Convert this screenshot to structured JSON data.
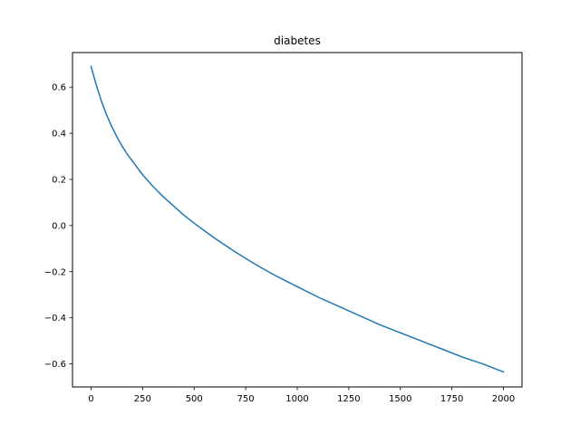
{
  "chart_data": {
    "type": "line",
    "title": "diabetes",
    "xlabel": "",
    "ylabel": "",
    "xlim": [
      -90,
      2090
    ],
    "ylim": [
      -0.7,
      0.75
    ],
    "xticks": [
      0,
      250,
      500,
      750,
      1000,
      1250,
      1500,
      1750,
      2000
    ],
    "xtick_labels": [
      "0",
      "250",
      "500",
      "750",
      "1000",
      "1250",
      "1500",
      "1750",
      "2000"
    ],
    "yticks": [
      -0.6,
      -0.4,
      -0.2,
      0.0,
      0.2,
      0.4,
      0.6
    ],
    "ytick_labels": [
      "−0.6",
      "−0.4",
      "−0.2",
      "0.0",
      "0.2",
      "0.4",
      "0.6"
    ],
    "grid": false,
    "series": [
      {
        "color": "#1f77b4",
        "x": [
          0,
          25,
          50,
          75,
          100,
          125,
          150,
          175,
          200,
          250,
          300,
          350,
          400,
          450,
          500,
          600,
          700,
          800,
          900,
          1000,
          1100,
          1200,
          1300,
          1400,
          1500,
          1600,
          1700,
          1800,
          1900,
          2000
        ],
        "y": [
          0.69,
          0.61,
          0.54,
          0.48,
          0.43,
          0.385,
          0.345,
          0.31,
          0.28,
          0.22,
          0.17,
          0.125,
          0.085,
          0.045,
          0.01,
          -0.055,
          -0.115,
          -0.17,
          -0.22,
          -0.265,
          -0.31,
          -0.35,
          -0.39,
          -0.43,
          -0.465,
          -0.5,
          -0.535,
          -0.57,
          -0.6,
          -0.635
        ]
      }
    ]
  }
}
